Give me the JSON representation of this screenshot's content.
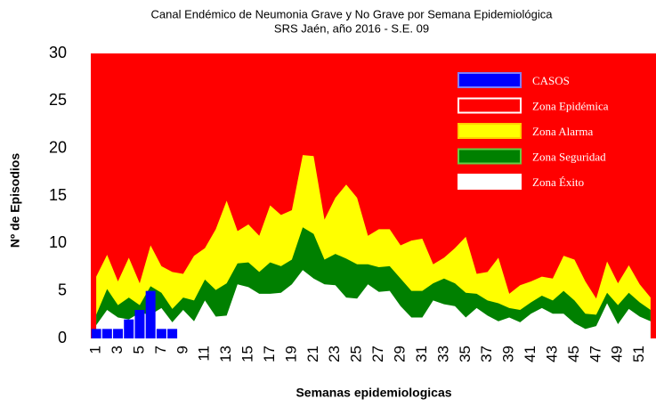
{
  "chart_data": {
    "type": "endemic-channel",
    "title": "Canal Endémico de Neumonia Grave y No Grave por Semana Epidemiológica",
    "subtitle": "SRS Jaén, año 2016 - S.E. 09",
    "x_label": "Semanas epidemiologicas",
    "y_label": "Nº de Episodios",
    "x": [
      1,
      2,
      3,
      4,
      5,
      6,
      7,
      8,
      9,
      10,
      11,
      12,
      13,
      14,
      15,
      16,
      17,
      18,
      19,
      20,
      21,
      22,
      23,
      24,
      25,
      26,
      27,
      28,
      29,
      30,
      31,
      32,
      33,
      34,
      35,
      36,
      37,
      38,
      39,
      40,
      41,
      42,
      43,
      44,
      45,
      46,
      47,
      48,
      49,
      50,
      51,
      52
    ],
    "xlim": [
      0.5,
      52.5
    ],
    "xticks": [
      1,
      3,
      5,
      7,
      9,
      11,
      13,
      15,
      17,
      19,
      21,
      23,
      25,
      27,
      29,
      31,
      33,
      35,
      37,
      39,
      41,
      43,
      45,
      47,
      49,
      51
    ],
    "ylim": [
      0,
      30
    ],
    "yticks": [
      0,
      5,
      10,
      15,
      20,
      25,
      30
    ],
    "series": [
      {
        "name": "CASOS",
        "type": "bar",
        "color": "#0000ff",
        "values": [
          1,
          1,
          1,
          2,
          3,
          5,
          1,
          1,
          null,
          null,
          null,
          null,
          null,
          null,
          null,
          null,
          null,
          null,
          null,
          null,
          null,
          null,
          null,
          null,
          null,
          null,
          null,
          null,
          null,
          null,
          null,
          null,
          null,
          null,
          null,
          null,
          null,
          null,
          null,
          null,
          null,
          null,
          null,
          null,
          null,
          null,
          null,
          null,
          null,
          null,
          null,
          null
        ]
      },
      {
        "name": "Zona Epidémica",
        "type": "background",
        "color": "#ff0000"
      },
      {
        "name": "Zona Alarma",
        "type": "area",
        "color": "#ffff00",
        "values": [
          6.5,
          8.8,
          6,
          8.5,
          5.8,
          9.8,
          7.6,
          7,
          6.8,
          8.7,
          9.5,
          11.5,
          14.5,
          11.3,
          12,
          10.8,
          14,
          13,
          13.5,
          19.3,
          19.2,
          12.5,
          14.8,
          16.2,
          14.8,
          10.8,
          11.5,
          11.5,
          9.8,
          10.3,
          10.5,
          7.8,
          8.5,
          9.5,
          10.7,
          6.8,
          7,
          8.5,
          4.7,
          5.6,
          6,
          6.5,
          6.3,
          8.7,
          8.3,
          6,
          4.2,
          8.1,
          5.8,
          7.7,
          5.7,
          4.3
        ]
      },
      {
        "name": "Zona Seguridad",
        "type": "area",
        "color": "#008000",
        "values": [
          2.5,
          5.2,
          3.5,
          4.3,
          3.5,
          5.5,
          4.8,
          3.1,
          4.3,
          4,
          6.2,
          5.1,
          5.8,
          7.9,
          8,
          7,
          8,
          7.6,
          8.3,
          11.7,
          11,
          8.3,
          8.9,
          8.4,
          7.8,
          7.8,
          7.5,
          7.6,
          6.3,
          5,
          5,
          5.8,
          6.3,
          5.8,
          4.8,
          4.7,
          4,
          3.7,
          3.2,
          3,
          3.8,
          4.5,
          4,
          5,
          4,
          2.6,
          2.5,
          4.8,
          3.5,
          4.8,
          3.8,
          3
        ]
      },
      {
        "name": "Zona Éxito",
        "type": "area",
        "color": "#ffffff",
        "values": [
          1.4,
          3,
          2.2,
          2,
          2.7,
          2.5,
          3.2,
          1.7,
          3,
          1.8,
          4,
          2.3,
          2.4,
          5.7,
          5.4,
          4.7,
          4.7,
          4.8,
          5.7,
          7.2,
          6.3,
          5.7,
          5.6,
          4.3,
          4.2,
          5.7,
          4.9,
          5,
          3.4,
          2.2,
          2.2,
          4,
          3.6,
          3.4,
          2.2,
          3.2,
          2.4,
          1.8,
          2.2,
          1.7,
          2.6,
          3.2,
          2.6,
          2.6,
          1.6,
          1,
          1.3,
          3.7,
          1.5,
          3.1,
          2.3,
          1.8
        ]
      }
    ]
  }
}
